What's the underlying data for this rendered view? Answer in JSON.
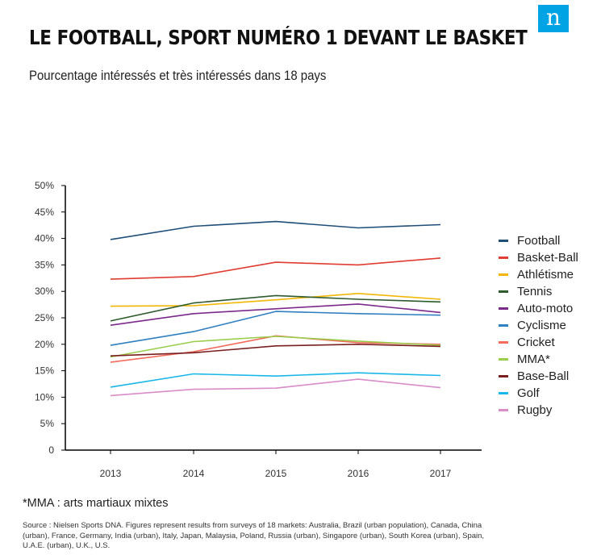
{
  "logo": "n",
  "header": {
    "title": "LE FOOTBALL, SPORT NUMÉRO 1 DEVANT LE BASKET",
    "subtitle": "Pourcentage intéressés et très intéressés dans 18 pays"
  },
  "footnote": "*MMA : arts martiaux mixtes",
  "source": "Source : Nielsen Sports DNA. Figures represent results from surveys of 18 markets: Australia, Brazil (urban population), Canada, China (urban), France, Germany, India (urban), Italy, Japan, Malaysia, Poland, Russia (urban), Singapore (urban), South Korea (urban), Spain, U.A.E. (urban), U.K., U.S.",
  "chart_data": {
    "type": "line",
    "x": [
      "2013",
      "2014",
      "2015",
      "2016",
      "2017"
    ],
    "ylim": [
      0,
      50
    ],
    "yticks": [
      "0",
      "5%",
      "10%",
      "15%",
      "20%",
      "25%",
      "30%",
      "35%",
      "40%",
      "45%",
      "50%"
    ],
    "grid": false,
    "legend_position": "right",
    "series": [
      {
        "name": "Football",
        "color": "#1f4e79",
        "values": [
          39.8,
          42.3,
          43.2,
          42.0,
          42.6
        ]
      },
      {
        "name": "Basket-Ball",
        "color": "#e03c31",
        "values": [
          32.3,
          32.8,
          35.5,
          35.0,
          36.3
        ]
      },
      {
        "name": "Athlétisme",
        "color": "#f2b705",
        "values": [
          27.2,
          27.3,
          28.4,
          29.6,
          28.5
        ]
      },
      {
        "name": "Tennis",
        "color": "#2e5a2e",
        "values": [
          24.4,
          27.8,
          29.2,
          28.5,
          28.0
        ]
      },
      {
        "name": "Auto-moto",
        "color": "#7b2a8c",
        "values": [
          23.6,
          25.8,
          26.7,
          27.6,
          26.0
        ]
      },
      {
        "name": "Cyclisme",
        "color": "#2f7fc1",
        "values": [
          19.8,
          22.4,
          26.2,
          25.8,
          25.5
        ]
      },
      {
        "name": "Cricket",
        "color": "#f26b5b",
        "values": [
          16.6,
          18.6,
          21.6,
          20.3,
          20.0
        ]
      },
      {
        "name": "MMA*",
        "color": "#9acd4b",
        "values": [
          17.6,
          20.5,
          21.5,
          20.6,
          19.8
        ]
      },
      {
        "name": "Base-Ball",
        "color": "#7a1f1f",
        "values": [
          17.8,
          18.4,
          19.7,
          20.0,
          19.6
        ]
      },
      {
        "name": "Golf",
        "color": "#19b6e8",
        "values": [
          11.9,
          14.4,
          14.0,
          14.6,
          14.1
        ]
      },
      {
        "name": "Rugby",
        "color": "#d98cc8",
        "values": [
          10.3,
          11.5,
          11.7,
          13.4,
          11.8
        ]
      }
    ]
  }
}
